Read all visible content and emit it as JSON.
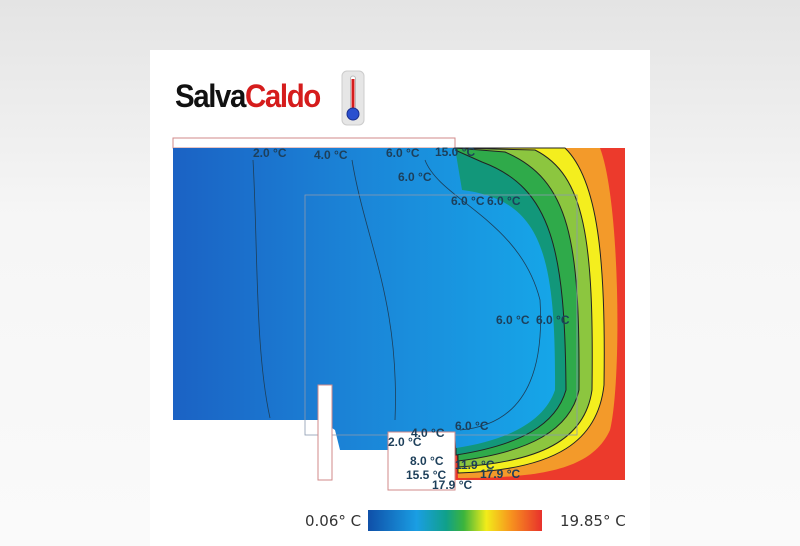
{
  "logo": {
    "part1": "Salva",
    "part2": "Caldo",
    "icon": "thermometer-icon"
  },
  "contour_labels": [
    "2.0 °C",
    "4.0 °C",
    "6.0 °C",
    "15.0 °C",
    "6.0 °C",
    "6.0 °C",
    "6.0 °C",
    "6.0 °C",
    "6.0 °C",
    "4.0 °C",
    "6.0 °C",
    "2.0 °C",
    "8.0 °C",
    "11.9 °C",
    "15.5 °C",
    "17.9 °C",
    "17.9 °C"
  ],
  "colorbar": {
    "min_label": "0.06° C",
    "max_label": "19.85° C",
    "colors": [
      "#0f4fa8",
      "#1a9ee3",
      "#10a08a",
      "#3cb43c",
      "#f2ec1a",
      "#f7941e",
      "#e8312c"
    ]
  }
}
